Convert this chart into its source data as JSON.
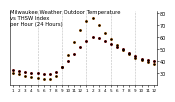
{
  "title": "Milwaukee Weather Outdoor Temperature",
  "title2": "vs THSW Index",
  "title3": "per Hour",
  "title4": "(24 Hours)",
  "hours": [
    0,
    1,
    2,
    3,
    4,
    5,
    6,
    7,
    8,
    9,
    10,
    11,
    12,
    13,
    14,
    15,
    16,
    17,
    18,
    19,
    20,
    21,
    22,
    23
  ],
  "temp": [
    33,
    32,
    31,
    30,
    30,
    29,
    29,
    31,
    35,
    40,
    46,
    52,
    57,
    60,
    59,
    57,
    54,
    52,
    50,
    47,
    44,
    42,
    41,
    40
  ],
  "thsw": [
    30,
    29,
    28,
    27,
    26,
    25,
    25,
    28,
    35,
    45,
    56,
    66,
    73,
    76,
    70,
    63,
    58,
    53,
    49,
    46,
    43,
    41,
    39,
    38
  ],
  "temp_color": "#cc0000",
  "thsw_color": "#ff8800",
  "bg_color": "#ffffff",
  "grid_color": "#bbbbbb",
  "ylim": [
    20,
    82
  ],
  "ytick_vals": [
    30,
    40,
    50,
    60,
    70,
    80
  ],
  "ytick_labels": [
    "30",
    "40",
    "50",
    "60",
    "70",
    "80"
  ],
  "xtick_vals": [
    0,
    1,
    2,
    3,
    4,
    5,
    6,
    7,
    8,
    9,
    10,
    11,
    12,
    13,
    14,
    15,
    16,
    17,
    18,
    19,
    20,
    21,
    22,
    23
  ],
  "xtick_labels": [
    "1",
    "2",
    "3",
    "4",
    "5",
    "6",
    "7",
    "8",
    "9",
    "10",
    "11",
    "12",
    "1",
    "2",
    "3",
    "4",
    "5",
    "6",
    "7",
    "8",
    "9",
    "10",
    "11",
    "12"
  ],
  "xlabel_fontsize": 3.0,
  "ylabel_fontsize": 3.5,
  "title_fontsize": 3.8,
  "marker_size": 2.0,
  "black_marker_size": 1.5
}
